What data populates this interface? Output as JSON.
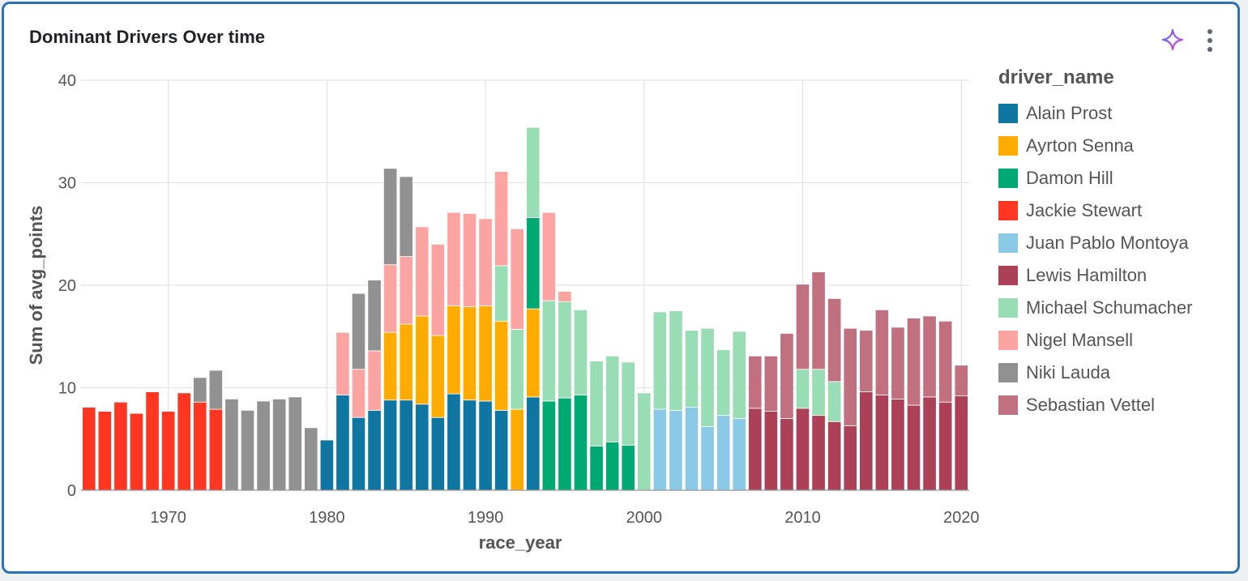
{
  "card": {
    "title": "Dominant Drivers Over time"
  },
  "icons": {
    "assistant": "sparkle-icon",
    "menu": "kebab-menu-icon"
  },
  "chart_data": {
    "type": "bar",
    "stacked": true,
    "title": "Dominant Drivers Over time",
    "xlabel": "race_year",
    "ylabel": "Sum of avg_points",
    "xlim": [
      1964.5,
      2020.5
    ],
    "ylim": [
      0,
      40
    ],
    "xticks": [
      1970,
      1980,
      1990,
      2000,
      2010,
      2020
    ],
    "yticks": [
      0,
      10,
      20,
      30,
      40
    ],
    "grid": true,
    "legend_title": "driver_name",
    "legend_position": "right",
    "series": [
      {
        "name": "Alain Prost",
        "color": "#0e76a1",
        "points": [
          [
            1980,
            4.9
          ],
          [
            1981,
            9.3
          ],
          [
            1982,
            7.1
          ],
          [
            1983,
            7.8
          ],
          [
            1984,
            8.8
          ],
          [
            1985,
            8.8
          ],
          [
            1986,
            8.4
          ],
          [
            1987,
            7.1
          ],
          [
            1988,
            9.4
          ],
          [
            1989,
            8.8
          ],
          [
            1990,
            8.7
          ],
          [
            1991,
            7.8
          ],
          [
            1993,
            9.1
          ]
        ]
      },
      {
        "name": "Ayrton Senna",
        "color": "#ffab00",
        "points": [
          [
            1984,
            6.6
          ],
          [
            1985,
            7.4
          ],
          [
            1986,
            8.6
          ],
          [
            1987,
            8.0
          ],
          [
            1988,
            8.6
          ],
          [
            1989,
            9.1
          ],
          [
            1990,
            9.3
          ],
          [
            1991,
            8.7
          ],
          [
            1992,
            7.9
          ],
          [
            1993,
            8.6
          ]
        ]
      },
      {
        "name": "Damon Hill",
        "color": "#00a972",
        "points": [
          [
            1993,
            8.9
          ],
          [
            1994,
            8.7
          ],
          [
            1995,
            9.0
          ],
          [
            1996,
            9.3
          ],
          [
            1997,
            4.3
          ],
          [
            1998,
            4.7
          ],
          [
            1999,
            4.4
          ]
        ]
      },
      {
        "name": "Jackie Stewart",
        "color": "#ff3621",
        "points": [
          [
            1965,
            8.1
          ],
          [
            1966,
            7.7
          ],
          [
            1967,
            8.6
          ],
          [
            1968,
            7.5
          ],
          [
            1969,
            9.6
          ],
          [
            1970,
            7.7
          ],
          [
            1971,
            9.5
          ],
          [
            1972,
            8.6
          ],
          [
            1973,
            7.9
          ]
        ]
      },
      {
        "name": "Juan Pablo Montoya",
        "color": "#8bcae7",
        "points": [
          [
            2001,
            7.9
          ],
          [
            2002,
            7.8
          ],
          [
            2003,
            8.1
          ],
          [
            2004,
            6.2
          ],
          [
            2005,
            7.3
          ],
          [
            2006,
            7.0
          ]
        ]
      },
      {
        "name": "Lewis Hamilton",
        "color": "#ab4057",
        "points": [
          [
            2007,
            8.0
          ],
          [
            2008,
            7.7
          ],
          [
            2009,
            7.0
          ],
          [
            2010,
            8.0
          ],
          [
            2011,
            7.3
          ],
          [
            2012,
            6.7
          ],
          [
            2013,
            6.3
          ],
          [
            2014,
            9.6
          ],
          [
            2015,
            9.3
          ],
          [
            2016,
            8.9
          ],
          [
            2017,
            8.3
          ],
          [
            2018,
            9.1
          ],
          [
            2019,
            8.6
          ],
          [
            2020,
            9.2
          ]
        ]
      },
      {
        "name": "Michael Schumacher",
        "color": "#99ddb4",
        "points": [
          [
            1991,
            5.4
          ],
          [
            1992,
            7.8
          ],
          [
            1993,
            8.8
          ],
          [
            1994,
            9.8
          ],
          [
            1995,
            9.4
          ],
          [
            1996,
            8.3
          ],
          [
            1997,
            8.3
          ],
          [
            1998,
            8.4
          ],
          [
            1999,
            8.1
          ],
          [
            2000,
            9.5
          ],
          [
            2001,
            9.5
          ],
          [
            2002,
            9.7
          ],
          [
            2003,
            7.5
          ],
          [
            2004,
            9.6
          ],
          [
            2005,
            6.4
          ],
          [
            2006,
            8.5
          ],
          [
            2010,
            3.8
          ],
          [
            2011,
            4.5
          ],
          [
            2012,
            3.9
          ]
        ]
      },
      {
        "name": "Nigel Mansell",
        "color": "#fca4a1",
        "points": [
          [
            1981,
            6.1
          ],
          [
            1982,
            4.7
          ],
          [
            1983,
            5.8
          ],
          [
            1984,
            6.6
          ],
          [
            1985,
            6.6
          ],
          [
            1986,
            8.7
          ],
          [
            1987,
            8.9
          ],
          [
            1988,
            9.1
          ],
          [
            1989,
            9.1
          ],
          [
            1990,
            8.5
          ],
          [
            1991,
            9.2
          ],
          [
            1992,
            9.8
          ],
          [
            1994,
            8.6
          ],
          [
            1995,
            1.0
          ]
        ]
      },
      {
        "name": "Niki Lauda",
        "color": "#919191",
        "points": [
          [
            1972,
            2.4
          ],
          [
            1973,
            3.8
          ],
          [
            1974,
            8.9
          ],
          [
            1975,
            7.8
          ],
          [
            1976,
            8.7
          ],
          [
            1977,
            8.9
          ],
          [
            1978,
            9.1
          ],
          [
            1979,
            6.1
          ],
          [
            1982,
            7.4
          ],
          [
            1983,
            6.9
          ],
          [
            1984,
            9.4
          ],
          [
            1985,
            7.8
          ]
        ]
      },
      {
        "name": "Sebastian Vettel",
        "color": "#c0707f",
        "points": [
          [
            2007,
            5.1
          ],
          [
            2008,
            5.4
          ],
          [
            2009,
            8.3
          ],
          [
            2010,
            8.3
          ],
          [
            2011,
            9.5
          ],
          [
            2012,
            8.1
          ],
          [
            2013,
            9.5
          ],
          [
            2014,
            6.0
          ],
          [
            2015,
            8.3
          ],
          [
            2016,
            7.0
          ],
          [
            2017,
            8.5
          ],
          [
            2018,
            7.9
          ],
          [
            2019,
            7.9
          ],
          [
            2020,
            3.0
          ]
        ]
      }
    ]
  }
}
